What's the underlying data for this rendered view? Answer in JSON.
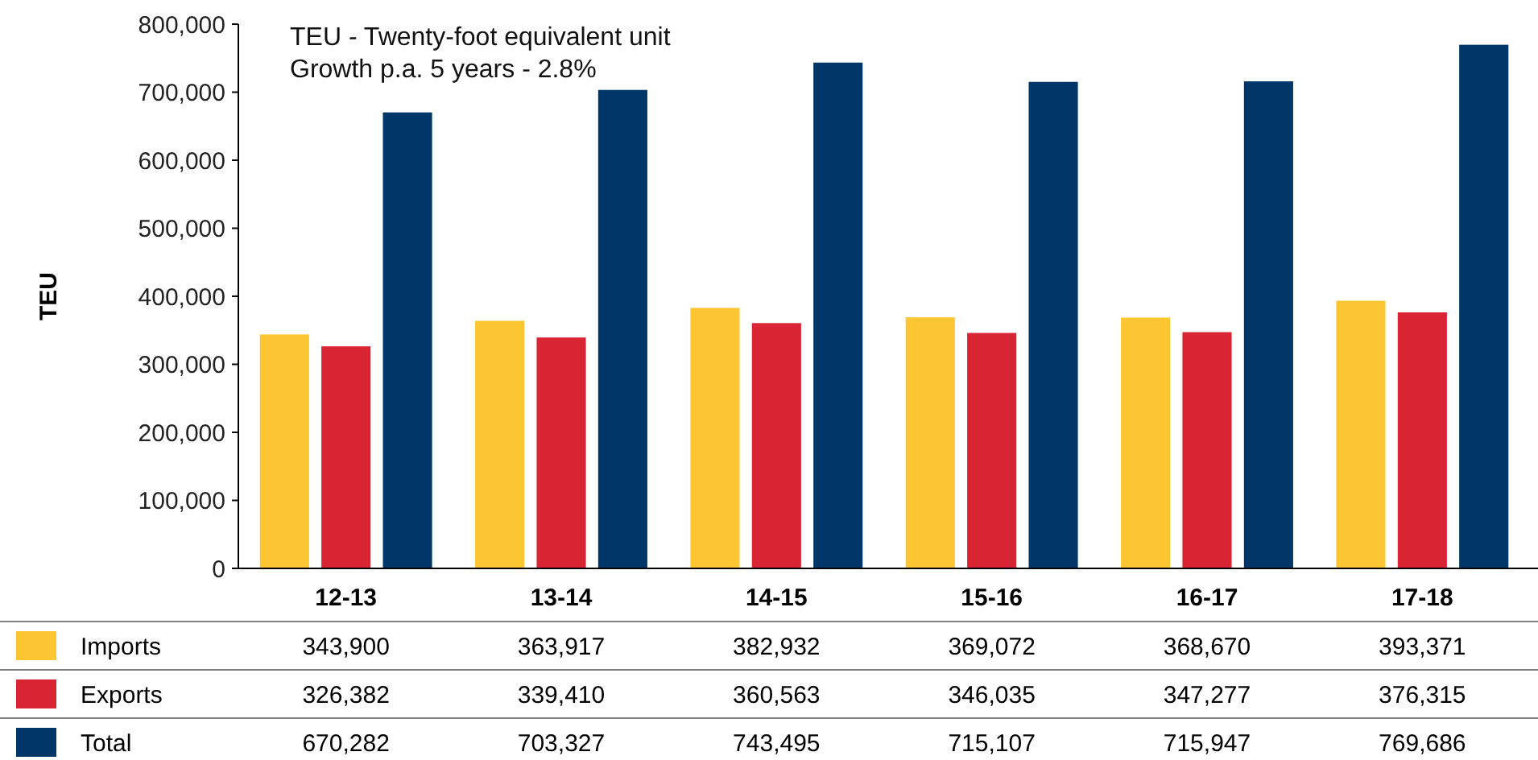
{
  "chart_data": {
    "type": "bar",
    "ylabel": "TEU",
    "annotations": [
      "TEU - Twenty-foot equivalent unit",
      "Growth p.a. 5 years - 2.8%"
    ],
    "categories": [
      "12-13",
      "13-14",
      "14-15",
      "15-16",
      "16-17",
      "17-18"
    ],
    "series": [
      {
        "name": "Imports",
        "color": "#fcc633",
        "values": [
          343900,
          363917,
          382932,
          369072,
          368670,
          393371
        ],
        "value_labels": [
          "343,900",
          "363,917",
          "382,932",
          "369,072",
          "368,670",
          "393,371"
        ]
      },
      {
        "name": "Exports",
        "color": "#d92533",
        "values": [
          326382,
          339410,
          360563,
          346035,
          347277,
          376315
        ],
        "value_labels": [
          "326,382",
          "339,410",
          "360,563",
          "346,035",
          "347,277",
          "376,315"
        ]
      },
      {
        "name": "Total",
        "color": "#003768",
        "values": [
          670282,
          703327,
          743495,
          715107,
          715947,
          769686
        ],
        "value_labels": [
          "670,282",
          "703,327",
          "743,495",
          "715,107",
          "715,947",
          "769,686"
        ]
      }
    ],
    "ylim": [
      0,
      800000
    ],
    "yticks": [
      {
        "value": 0,
        "label": "0"
      },
      {
        "value": 100000,
        "label": "100,000"
      },
      {
        "value": 200000,
        "label": "200,000"
      },
      {
        "value": 300000,
        "label": "300,000"
      },
      {
        "value": 400000,
        "label": "400,000"
      },
      {
        "value": 500000,
        "label": "500,000"
      },
      {
        "value": 600000,
        "label": "600,000"
      },
      {
        "value": 700000,
        "label": "700,000"
      },
      {
        "value": 800000,
        "label": "800,000"
      }
    ],
    "grid": false,
    "legend": "bottom"
  }
}
